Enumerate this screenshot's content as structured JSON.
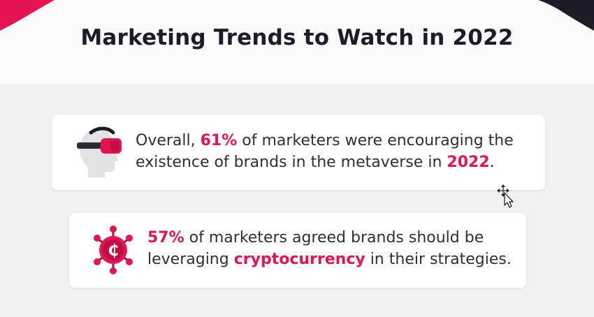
{
  "title": "Marketing Trends to Watch in 2022",
  "colors": {
    "accent": "#e3144f",
    "title_text": "#1c1d2b",
    "body_text": "#2e2e3a",
    "card_bg": "#ffffff",
    "page_bg": "#f1f1f1"
  },
  "cards": [
    {
      "icon": "vr-headset-icon",
      "parts": [
        "Overall, ",
        "61%",
        " of marketers were encouraging the existence of brands in the metaverse in ",
        "2022",
        "."
      ]
    },
    {
      "icon": "cryptocurrency-icon",
      "parts": [
        "57%",
        " of marketers agreed brands should be leveraging ",
        "cryptocurrency",
        " in their strategies."
      ]
    }
  ]
}
